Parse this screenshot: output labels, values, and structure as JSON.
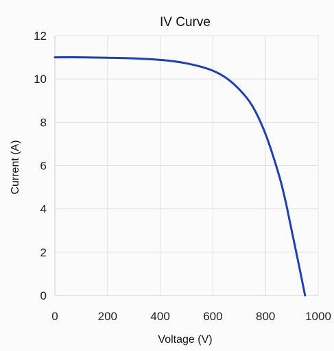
{
  "chart_data": {
    "type": "line",
    "title": "IV Curve",
    "xlabel": "Voltage (V)",
    "ylabel": "Current (A)",
    "xlim": [
      0,
      1000
    ],
    "ylim": [
      0,
      12
    ],
    "xticks": [
      0,
      200,
      400,
      600,
      800,
      1000
    ],
    "yticks": [
      0,
      2,
      4,
      6,
      8,
      10,
      12
    ],
    "grid": true,
    "legend": "none",
    "series": [
      {
        "color": "#1f3fb4",
        "x": [
          0,
          100,
          200,
          300,
          400,
          450,
          500,
          550,
          600,
          650,
          700,
          750,
          800,
          850,
          875,
          900,
          925,
          950
        ],
        "y": [
          11.0,
          11.0,
          10.98,
          10.95,
          10.88,
          10.82,
          10.72,
          10.58,
          10.38,
          10.05,
          9.52,
          8.75,
          7.45,
          5.6,
          4.4,
          2.95,
          1.5,
          0.0
        ]
      }
    ]
  }
}
